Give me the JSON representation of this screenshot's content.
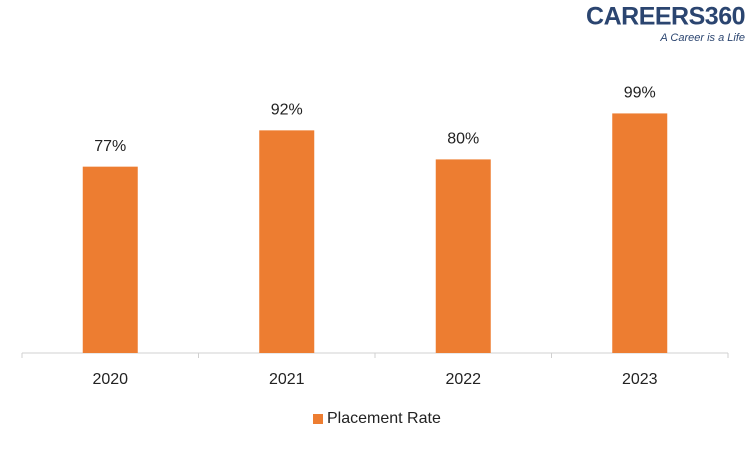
{
  "logo": {
    "name": "CAREERS360",
    "tagline": "A Career is a Life"
  },
  "chart_data": {
    "type": "bar",
    "categories": [
      "2020",
      "2021",
      "2022",
      "2023"
    ],
    "series": [
      {
        "name": "Placement Rate",
        "color": "#ed7d31",
        "values": [
          77,
          92,
          80,
          99
        ],
        "value_labels": [
          "77%",
          "92%",
          "80%",
          "99%"
        ]
      }
    ],
    "ylim": [
      0,
      100
    ],
    "legend": "bottom"
  }
}
